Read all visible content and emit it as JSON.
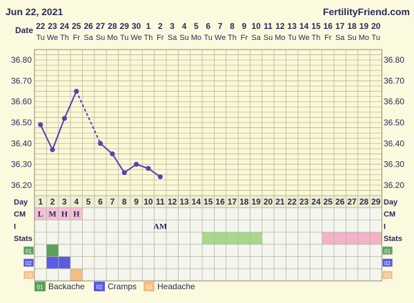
{
  "header": {
    "date_text": "Jun 22, 2021",
    "site_name": "FertilityFriend.com"
  },
  "labels": {
    "date": "Date",
    "day": "Day",
    "cm": "CM",
    "i": "I",
    "stats": "Stats"
  },
  "dates": [
    "22",
    "23",
    "24",
    "25",
    "26",
    "27",
    "28",
    "29",
    "30",
    "1",
    "2",
    "3",
    "4",
    "5",
    "6",
    "7",
    "8",
    "9",
    "10",
    "11",
    "12",
    "13",
    "14",
    "15",
    "16",
    "17",
    "18",
    "19",
    "20"
  ],
  "weekdays": [
    "Tu",
    "We",
    "Th",
    "Fr",
    "Sa",
    "Su",
    "Mo",
    "Tu",
    "We",
    "Th",
    "Fr",
    "Sa",
    "Su",
    "Mo",
    "Tu",
    "We",
    "Th",
    "Fr",
    "Sa",
    "Su",
    "Mo",
    "Tu",
    "We",
    "Th",
    "Fr",
    "Sa",
    "Su",
    "Mo",
    "Tu"
  ],
  "days": [
    "1",
    "2",
    "3",
    "4",
    "5",
    "6",
    "7",
    "8",
    "9",
    "10",
    "11",
    "12",
    "13",
    "14",
    "15",
    "16",
    "17",
    "18",
    "19",
    "20",
    "21",
    "22",
    "23",
    "24",
    "25",
    "26",
    "27",
    "28",
    "29"
  ],
  "cm": [
    {
      "day": 1,
      "text": "L"
    },
    {
      "day": 2,
      "text": "M"
    },
    {
      "day": 3,
      "text": "H"
    },
    {
      "day": 4,
      "text": "H"
    }
  ],
  "i_row": [
    {
      "day": 11,
      "text": "AM"
    }
  ],
  "stats": [
    {
      "from": 15,
      "to": 19,
      "color": "#a6d98a"
    },
    {
      "from": 25,
      "to": 29,
      "color": "#f2b3c9"
    }
  ],
  "symptom_rows": [
    {
      "code": "01",
      "label": "Backache",
      "color": "#5aa05a",
      "days": [
        2
      ]
    },
    {
      "code": "02",
      "label": "Cramps",
      "color": "#5a5ae6",
      "days": [
        2,
        3
      ]
    },
    {
      "code": "03",
      "label": "Headache",
      "color": "#f5bd82",
      "days": [
        4
      ]
    }
  ],
  "chart_data": {
    "type": "line",
    "title": "",
    "xlabel": "Day",
    "ylabel": "",
    "ylim": [
      36.15,
      36.85
    ],
    "yticks": [
      "36.20",
      "36.30",
      "36.40",
      "36.50",
      "36.60",
      "36.70",
      "36.80"
    ],
    "line_color": "#5a3fb5",
    "series": [
      {
        "points": [
          {
            "day": 1,
            "temp": 36.49
          },
          {
            "day": 2,
            "temp": 36.37
          },
          {
            "day": 3,
            "temp": 36.52
          },
          {
            "day": 4,
            "temp": 36.65
          },
          {
            "day": 6,
            "temp": 36.4
          },
          {
            "day": 7,
            "temp": 36.35
          },
          {
            "day": 8,
            "temp": 36.26
          },
          {
            "day": 9,
            "temp": 36.3
          },
          {
            "day": 10,
            "temp": 36.28
          },
          {
            "day": 11,
            "temp": 36.24
          }
        ],
        "dashed_segments": [
          [
            4,
            6
          ]
        ]
      }
    ]
  }
}
